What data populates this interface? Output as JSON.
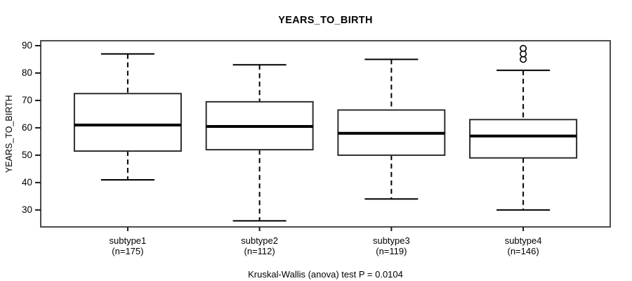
{
  "chart_data": {
    "type": "boxplot",
    "title": "YEARS_TO_BIRTH",
    "ylabel": "YEARS_TO_BIRTH",
    "xlabel": "",
    "ylim": [
      23.8,
      91.8
    ],
    "yticks": [
      30,
      40,
      50,
      60,
      70,
      80,
      90
    ],
    "grid": false,
    "legend": "none",
    "annotation": "Kruskal-Wallis (anova) test P = 0.0104",
    "categories": [
      "subtype1",
      "subtype2",
      "subtype3",
      "subtype4"
    ],
    "category_sublabels": [
      "(n=175)",
      "(n=112)",
      "(n=119)",
      "(n=146)"
    ],
    "series": [
      {
        "name": "subtype1",
        "n": 175,
        "whisker_low": 41,
        "q1": 51.5,
        "median": 61,
        "q3": 72.5,
        "whisker_high": 87,
        "outliers": []
      },
      {
        "name": "subtype2",
        "n": 112,
        "whisker_low": 26,
        "q1": 52,
        "median": 60.5,
        "q3": 69.5,
        "whisker_high": 83,
        "outliers": []
      },
      {
        "name": "subtype3",
        "n": 119,
        "whisker_low": 34,
        "q1": 50,
        "median": 58,
        "q3": 66.5,
        "whisker_high": 85,
        "outliers": []
      },
      {
        "name": "subtype4",
        "n": 146,
        "whisker_low": 30,
        "q1": 49,
        "median": 57,
        "q3": 63,
        "whisker_high": 81,
        "outliers": [
          85,
          87,
          89
        ]
      }
    ],
    "colors": {
      "background": "#ffffff",
      "box_fill": "#ffffff",
      "frame_stroke": "#4d4d4d",
      "box_stroke": "#2e2e2e",
      "median_stroke": "#000000",
      "whisker_stroke": "#000000",
      "text": "#000000"
    }
  }
}
